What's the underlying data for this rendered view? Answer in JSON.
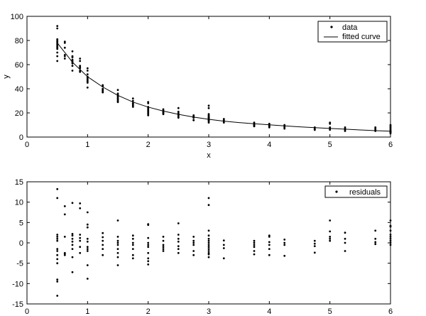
{
  "chart_data": [
    {
      "type": "scatter",
      "xlabel": "x",
      "ylabel": "y",
      "xlim": [
        0,
        6
      ],
      "ylim": [
        0,
        100
      ],
      "xticks": [
        0,
        1,
        2,
        3,
        4,
        5,
        6
      ],
      "yticks": [
        0,
        20,
        40,
        60,
        80,
        100
      ],
      "grid": false,
      "legend_position": "top-right",
      "series": [
        {
          "name": "data",
          "style": "dots",
          "x": [
            0.5,
            0.5,
            0.5,
            0.5,
            0.5,
            0.5,
            0.5,
            0.5,
            0.5,
            0.5,
            0.5,
            0.5,
            0.5,
            0.5,
            0.625,
            0.625,
            0.625,
            0.625,
            0.625,
            0.625,
            0.75,
            0.75,
            0.75,
            0.75,
            0.75,
            0.75,
            0.75,
            0.75,
            0.75,
            0.875,
            0.875,
            0.875,
            0.875,
            0.875,
            0.875,
            0.875,
            1,
            1,
            1,
            1,
            1,
            1,
            1,
            1,
            1,
            1,
            1.25,
            1.25,
            1.25,
            1.25,
            1.25,
            1.25,
            1.5,
            1.5,
            1.5,
            1.5,
            1.5,
            1.5,
            1.5,
            1.5,
            1.5,
            1.75,
            1.75,
            1.75,
            1.75,
            1.75,
            1.75,
            1.75,
            2,
            2,
            2,
            2,
            2,
            2,
            2,
            2,
            2,
            2,
            2.25,
            2.25,
            2.25,
            2.25,
            2.25,
            2.25,
            2.5,
            2.5,
            2.5,
            2.5,
            2.5,
            2.5,
            2.5,
            2.75,
            2.75,
            2.75,
            2.75,
            2.75,
            2.75,
            3,
            3,
            3,
            3,
            3,
            3,
            3,
            3,
            3,
            3,
            3,
            3,
            3,
            3,
            3.25,
            3.25,
            3.25,
            3.25,
            3.75,
            3.75,
            3.75,
            3.75,
            3.75,
            3.75,
            4,
            4,
            4,
            4,
            4,
            4,
            4.25,
            4.25,
            4.25,
            4.25,
            4.75,
            4.75,
            4.75,
            4.75,
            5,
            5,
            5,
            5,
            5,
            5.25,
            5.25,
            5.25,
            5.25,
            5.75,
            5.75,
            5.75,
            5.75,
            6,
            6,
            6,
            6,
            6,
            6,
            6,
            6,
            6,
            6
          ],
          "y": [
            92,
            90,
            81,
            80,
            79,
            78,
            77,
            76,
            75,
            74,
            73,
            70,
            67,
            63,
            79,
            78,
            74,
            68,
            67,
            65,
            71,
            67,
            66,
            64,
            63,
            62,
            61,
            59,
            55,
            65,
            63,
            59,
            58,
            57,
            55,
            54,
            57,
            55,
            52,
            50,
            49,
            48,
            47,
            46,
            45,
            41,
            43,
            42,
            40,
            39,
            38,
            37,
            39,
            36,
            35,
            34,
            33,
            32,
            31,
            30,
            29,
            32,
            30,
            28,
            28,
            27,
            26,
            25,
            29,
            28,
            25,
            24,
            23,
            22,
            21,
            20,
            19,
            18,
            23,
            22,
            21,
            20,
            20,
            19,
            24,
            21,
            20,
            19,
            18,
            17,
            16,
            18,
            17,
            16,
            16,
            14,
            14,
            26,
            24,
            19,
            18,
            17,
            17,
            16,
            16,
            15,
            15,
            14,
            14,
            13,
            12,
            15,
            14,
            13,
            12,
            12,
            11,
            10,
            10,
            9,
            9,
            11,
            10,
            10,
            9,
            9,
            8,
            10,
            9,
            8,
            7,
            8,
            7,
            6,
            6,
            12,
            11,
            8,
            7,
            6,
            8,
            7,
            6,
            5,
            8,
            7,
            6,
            5,
            10,
            9,
            8,
            7,
            6,
            5,
            5,
            4,
            4,
            3
          ]
        },
        {
          "name": "fitted curve",
          "style": "line",
          "x": [
            0.5,
            0.75,
            1,
            1.25,
            1.5,
            1.75,
            2,
            2.25,
            2.5,
            2.75,
            3,
            3.25,
            3.5,
            3.75,
            4,
            4.25,
            4.5,
            4.75,
            5,
            5.25,
            5.5,
            5.75,
            6
          ],
          "y": [
            78,
            62,
            50,
            41.5,
            34.5,
            29,
            24.8,
            21.5,
            18.8,
            16.5,
            14.7,
            13.2,
            12,
            11,
            10.1,
            9.3,
            8.5,
            7.8,
            7.1,
            6.5,
            5.9,
            5.3,
            4.8
          ]
        }
      ]
    },
    {
      "type": "scatter",
      "xlabel": "",
      "ylabel": "",
      "xlim": [
        0,
        6
      ],
      "ylim": [
        -15,
        15
      ],
      "xticks": [
        0,
        1,
        2,
        3,
        4,
        5,
        6
      ],
      "yticks": [
        -15,
        -10,
        -5,
        0,
        5,
        10,
        15
      ],
      "grid": false,
      "legend_position": "top-right",
      "series": [
        {
          "name": "residuals",
          "style": "dots",
          "x": [
            0.5,
            0.5,
            0.5,
            0.5,
            0.5,
            0.5,
            0.5,
            0.5,
            0.5,
            0.5,
            0.5,
            0.5,
            0.5,
            0.5,
            0.625,
            0.625,
            0.625,
            0.625,
            0.625,
            0.625,
            0.75,
            0.75,
            0.75,
            0.75,
            0.75,
            0.75,
            0.75,
            0.75,
            0.75,
            0.875,
            0.875,
            0.875,
            0.875,
            0.875,
            0.875,
            0.875,
            1,
            1,
            1,
            1,
            1,
            1,
            1,
            1,
            1,
            1,
            1.25,
            1.25,
            1.25,
            1.25,
            1.25,
            1.25,
            1.5,
            1.5,
            1.5,
            1.5,
            1.5,
            1.5,
            1.5,
            1.5,
            1.5,
            1.75,
            1.75,
            1.75,
            1.75,
            1.75,
            1.75,
            1.75,
            2,
            2,
            2,
            2,
            2,
            2,
            2,
            2,
            2,
            2,
            2.25,
            2.25,
            2.25,
            2.25,
            2.25,
            2.25,
            2.5,
            2.5,
            2.5,
            2.5,
            2.5,
            2.5,
            2.5,
            2.75,
            2.75,
            2.75,
            2.75,
            2.75,
            2.75,
            3,
            3,
            3,
            3,
            3,
            3,
            3,
            3,
            3,
            3,
            3,
            3,
            3,
            3,
            3.25,
            3.25,
            3.25,
            3.25,
            3.75,
            3.75,
            3.75,
            3.75,
            3.75,
            3.75,
            4,
            4,
            4,
            4,
            4,
            4,
            4.25,
            4.25,
            4.25,
            4.25,
            4.75,
            4.75,
            4.75,
            4.75,
            5,
            5,
            5,
            5,
            5,
            5.25,
            5.25,
            5.25,
            5.25,
            5.75,
            5.75,
            5.75,
            5.75,
            6,
            6,
            6,
            6,
            6,
            6,
            6,
            6,
            6,
            6
          ],
          "y": [
            13.2,
            11,
            2,
            1.5,
            1,
            0.5,
            -1.5,
            -2,
            -3,
            -4,
            -5,
            -9,
            -9.5,
            -13,
            9,
            7,
            1.5,
            -2.5,
            -3,
            -2.7,
            9.8,
            2.2,
            1.8,
            1,
            0.3,
            -0.5,
            -1.5,
            -3.5,
            -7.2,
            9.7,
            8.5,
            2,
            1.2,
            0.5,
            -1,
            -2.5,
            7.5,
            4.5,
            3.8,
            1,
            0.3,
            -1,
            -1.5,
            -2,
            -5.5,
            -8.8,
            2.4,
            1.4,
            0.5,
            -0.5,
            -1.5,
            -3,
            5.5,
            1.5,
            0.5,
            0,
            -0.5,
            -1.5,
            -2.5,
            -3.5,
            -5.5,
            1.8,
            1,
            0,
            -0.5,
            -1.5,
            -3,
            -3.8,
            4.6,
            4.4,
            1.2,
            0,
            -0.5,
            -1,
            -2.5,
            -3.8,
            -4.5,
            -5.3,
            1.5,
            0.5,
            -0.5,
            -1,
            -1.5,
            -2,
            4.8,
            2,
            1,
            0.3,
            -0.8,
            -1.5,
            -2.5,
            1.5,
            0.5,
            0,
            -0.5,
            -2,
            -3,
            11,
            9.3,
            3,
            1.8,
            1,
            0.5,
            0,
            -0.5,
            -1,
            -1.5,
            -2,
            -2.5,
            -2.8,
            -3.5,
            0.6,
            -0.5,
            -1.3,
            -3.8,
            0.5,
            0,
            -0.5,
            -1,
            -2,
            -2.8,
            1.8,
            1.5,
            0.2,
            -0.5,
            -1.5,
            -3,
            0.8,
            0,
            -0.5,
            -3.2,
            0.5,
            -0.2,
            -0.8,
            -2.4,
            5.5,
            2.8,
            1.5,
            1,
            0.5,
            2.5,
            1,
            0,
            -2,
            3,
            1,
            0.2,
            -0.3,
            5.5,
            4.2,
            4,
            3,
            2,
            1.5,
            1,
            0.5,
            0,
            -0.5
          ]
        }
      ]
    }
  ]
}
